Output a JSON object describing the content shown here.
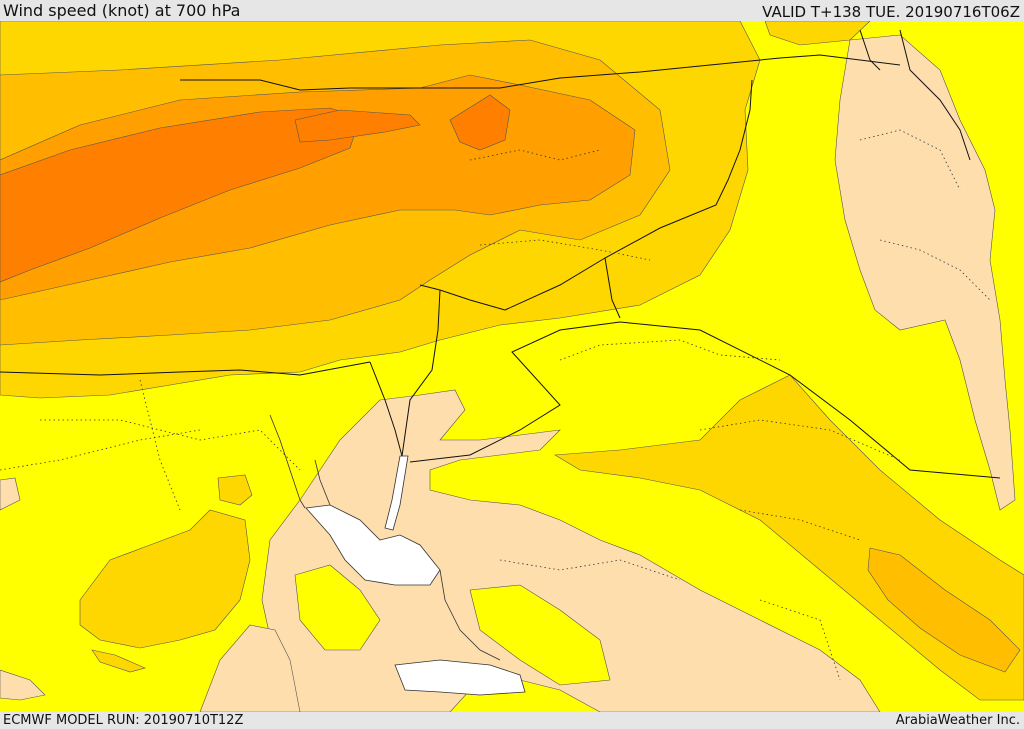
{
  "header": {
    "title": "Wind speed (knot) at 700 hPa",
    "valid": "VALID T+138 TUE. 20190716T06Z"
  },
  "footer": {
    "model_run": "ECMWF MODEL RUN: 20190710T12Z",
    "credit": "ArabiaWeather Inc."
  },
  "map": {
    "colors": {
      "yellow": "#ffff00",
      "gold": "#ffd700",
      "amber": "#ffbf00",
      "orange": "#ff9f00",
      "dark_orange": "#ff8000",
      "wheat": "#ffdead",
      "sea_white": "#ffffff",
      "frame": "#e6e6e6"
    }
  }
}
